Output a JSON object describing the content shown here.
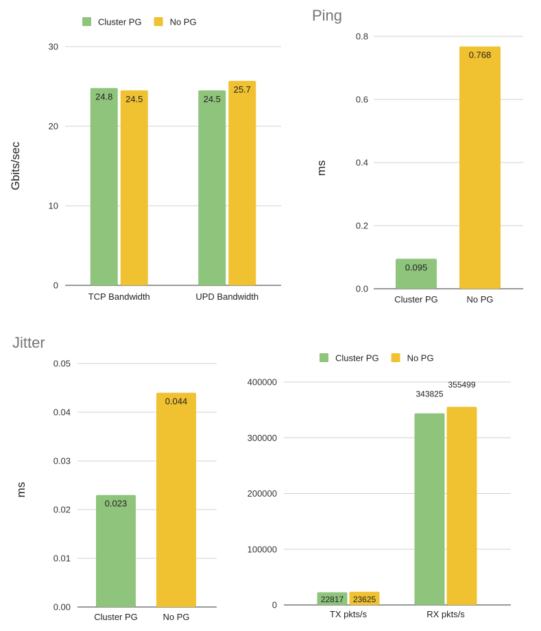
{
  "colors": {
    "cluster_pg": "#8fc47d",
    "no_pg": "#f0c232"
  },
  "chart_data": [
    {
      "type": "bar",
      "title": "",
      "ylabel": "Gbits/sec",
      "categories": [
        "TCP Bandwidth",
        "UPD Bandwidth"
      ],
      "series": [
        {
          "name": "Cluster PG",
          "values": [
            24.8,
            24.5
          ],
          "labels": [
            "24.8",
            "24.5"
          ]
        },
        {
          "name": "No PG",
          "values": [
            24.5,
            25.7
          ],
          "labels": [
            "24.5",
            "25.7"
          ]
        }
      ],
      "ylim": [
        0,
        30
      ],
      "yticks": [
        0,
        10,
        20,
        30
      ],
      "ytick_labels": [
        "0",
        "10",
        "20",
        "30"
      ],
      "legend": "top-left",
      "grid": true
    },
    {
      "type": "bar",
      "title": "Ping",
      "ylabel": "ms",
      "categories": [
        "Cluster PG",
        "No PG"
      ],
      "series": [
        {
          "name": "",
          "values": [
            0.095,
            0.768
          ],
          "labels": [
            "0.095",
            "0.768"
          ]
        }
      ],
      "ylim": [
        0,
        0.8
      ],
      "yticks": [
        0,
        0.2,
        0.4,
        0.6,
        0.8
      ],
      "ytick_labels": [
        "0.0",
        "0.2",
        "0.4",
        "0.6",
        "0.8"
      ],
      "legend": "none",
      "grid": true
    },
    {
      "type": "bar",
      "title": "Jitter",
      "ylabel": "ms",
      "categories": [
        "Cluster PG",
        "No PG"
      ],
      "series": [
        {
          "name": "",
          "values": [
            0.023,
            0.044
          ],
          "labels": [
            "0.023",
            "0.044"
          ]
        }
      ],
      "ylim": [
        0,
        0.05
      ],
      "yticks": [
        0,
        0.01,
        0.02,
        0.03,
        0.04,
        0.05
      ],
      "ytick_labels": [
        "0.00",
        "0.01",
        "0.02",
        "0.03",
        "0.04",
        "0.05"
      ],
      "legend": "none",
      "grid": true
    },
    {
      "type": "bar",
      "title": "",
      "ylabel": "",
      "categories": [
        "TX pkts/s",
        "RX pkts/s"
      ],
      "series": [
        {
          "name": "Cluster PG",
          "values": [
            22817,
            343825
          ],
          "labels": [
            "22817",
            "343825"
          ]
        },
        {
          "name": "No PG",
          "values": [
            23625,
            355499
          ],
          "labels": [
            "23625",
            "355499"
          ]
        }
      ],
      "ylim": [
        0,
        400000
      ],
      "yticks": [
        0,
        100000,
        200000,
        300000,
        400000
      ],
      "ytick_labels": [
        "0",
        "100000",
        "200000",
        "300000",
        "400000"
      ],
      "legend": "top-center",
      "grid": true
    }
  ]
}
